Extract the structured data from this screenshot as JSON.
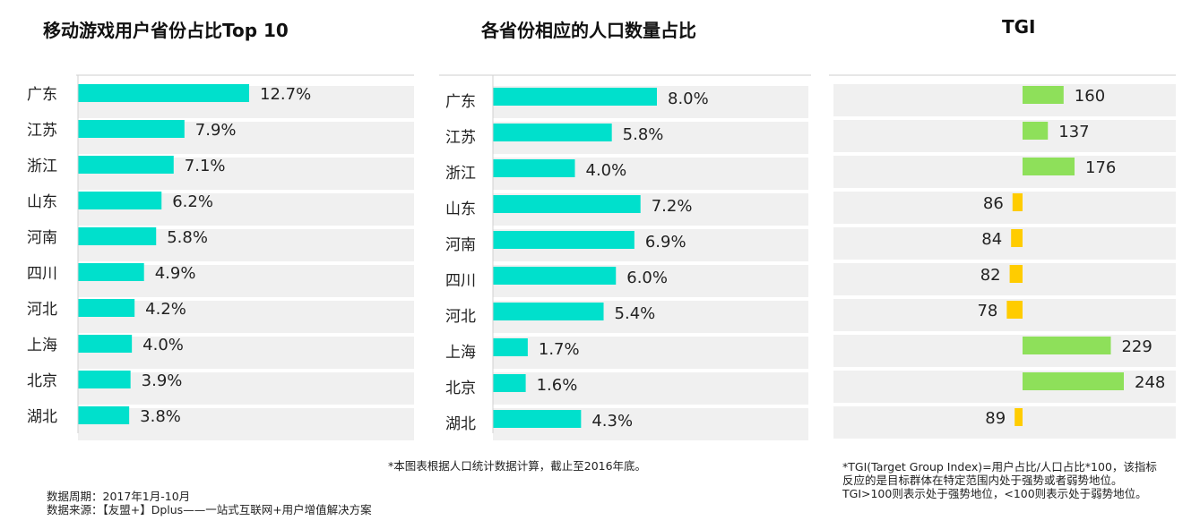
{
  "panel1": {
    "title": "移动游戏用户省份占比Top 10"
  },
  "panel2": {
    "title": "各省份相应的人口数量占比"
  },
  "panel3": {
    "title": "TGI"
  },
  "colors": {
    "teal": "#00E0CC",
    "green": "#8EE05A",
    "yellow": "#FFCC00",
    "row_band": "#F0F0F0"
  },
  "chart_data": [
    {
      "type": "bar",
      "title": "移动游戏用户省份占比Top 10",
      "categories": [
        "广东",
        "江苏",
        "浙江",
        "山东",
        "河南",
        "四川",
        "河北",
        "上海",
        "北京",
        "湖北"
      ],
      "values": [
        12.7,
        7.9,
        7.1,
        6.2,
        5.8,
        4.9,
        4.2,
        4.0,
        3.9,
        3.8
      ],
      "labels": [
        "12.7%",
        "7.9%",
        "7.1%",
        "6.2%",
        "5.8%",
        "4.9%",
        "4.2%",
        "4.0%",
        "3.9%",
        "3.8%"
      ],
      "orientation": "horizontal",
      "grid": false
    },
    {
      "type": "bar",
      "title": "各省份相应的人口数量占比",
      "categories": [
        "广东",
        "江苏",
        "浙江",
        "山东",
        "河南",
        "四川",
        "河北",
        "上海",
        "北京",
        "湖北"
      ],
      "values": [
        8.0,
        5.8,
        4.0,
        7.2,
        6.9,
        6.0,
        5.4,
        1.7,
        1.6,
        4.3
      ],
      "labels": [
        "8.0%",
        "5.8%",
        "4.0%",
        "7.2%",
        "6.9%",
        "6.0%",
        "5.4%",
        "1.7%",
        "1.6%",
        "4.3%"
      ],
      "orientation": "horizontal",
      "grid": false
    },
    {
      "type": "bar",
      "title": "TGI",
      "categories": [
        "广东",
        "江苏",
        "浙江",
        "山东",
        "河南",
        "四川",
        "河北",
        "上海",
        "北京",
        "湖北"
      ],
      "values": [
        160,
        137,
        176,
        86,
        84,
        82,
        78,
        229,
        248,
        89
      ],
      "labels": [
        "160",
        "137",
        "176",
        "86",
        "84",
        "82",
        "78",
        "229",
        "248",
        "89"
      ],
      "baseline": 100,
      "orientation": "horizontal",
      "grid": false
    }
  ],
  "notes": {
    "footnote_center": "*本图表根据人口统计数据计算，截止至2016年底。",
    "tgi_line1": "*TGI(Target Group Index)=用户占比/人口占比*100，该指标",
    "tgi_line2": "反应的是目标群体在特定范围内处于强势或者弱势地位。",
    "tgi_line3": "TGI>100则表示处于强势地位，<100则表示处于弱势地位。",
    "period": "数据周期：2017年1月-10月",
    "source": "数据来源：【友盟+】Dplus——一站式互联网+用户增值解决方案"
  }
}
